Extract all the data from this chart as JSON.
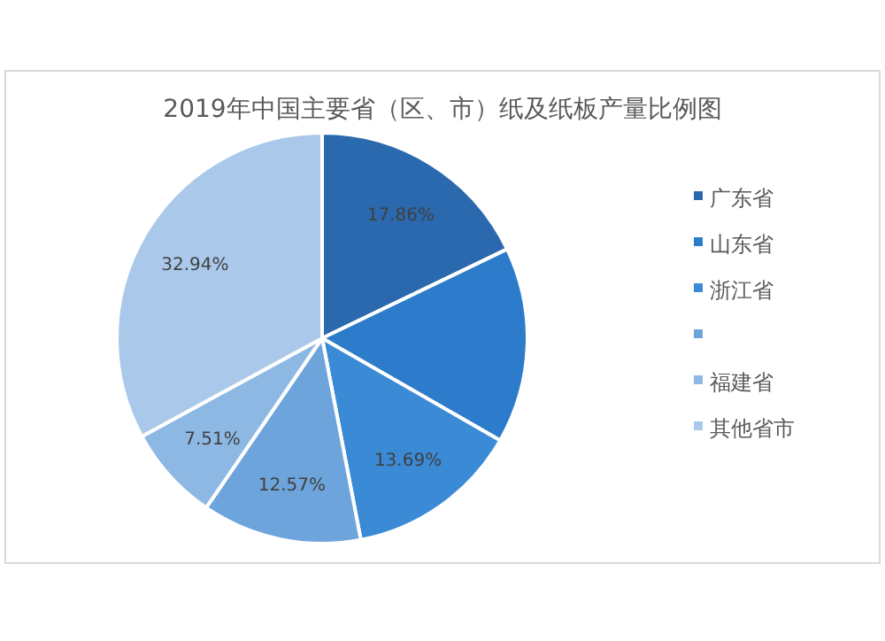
{
  "chart_data": {
    "type": "pie",
    "title": "2019年中国主要省（区、市）纸及纸板产量比例图",
    "categories": [
      "广东省",
      "山东省",
      "浙江省",
      null,
      "福建省",
      "其他省市"
    ],
    "values": [
      17.86,
      15.43,
      13.69,
      12.57,
      7.51,
      32.94
    ],
    "colors": [
      "#2a69ae",
      "#2c7ccb",
      "#3a8ad6",
      "#6ea4dc",
      "#8db8e4",
      "#aac9ea"
    ],
    "value_labels": [
      "17.86%",
      null,
      "13.69%",
      "12.57%",
      "7.51%",
      "32.94%"
    ],
    "legend": "right"
  }
}
